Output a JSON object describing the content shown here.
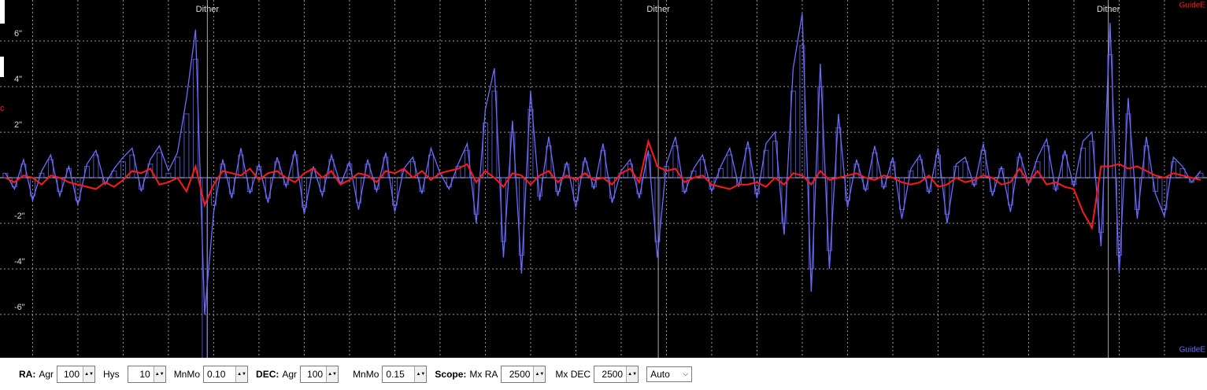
{
  "chart_data": {
    "type": "line",
    "x": [
      -3,
      -2,
      -1,
      0,
      1,
      2,
      3,
      4,
      5,
      6,
      7,
      8,
      9,
      10,
      11,
      12,
      13,
      14,
      15,
      16,
      17,
      18,
      19,
      20,
      21,
      22,
      23,
      24,
      25,
      26,
      27,
      28,
      29,
      30,
      31,
      32,
      33,
      34,
      35,
      36,
      37,
      38,
      39,
      40,
      41,
      42,
      43,
      44,
      45,
      46,
      47,
      48,
      49,
      50,
      51,
      52,
      53,
      54,
      55,
      56,
      57,
      58,
      59,
      60,
      61,
      62,
      63,
      64,
      65,
      66,
      67,
      68,
      69,
      70,
      71,
      72,
      73,
      74,
      75,
      76,
      77,
      78,
      79,
      80,
      81,
      82,
      83,
      84,
      85,
      86,
      87,
      88,
      89,
      90,
      91,
      92,
      93,
      94,
      95,
      96,
      97,
      98,
      99,
      100,
      101,
      102,
      103,
      104,
      105,
      106,
      107,
      108,
      109,
      110,
      111,
      112,
      113,
      114,
      115,
      116,
      117,
      118,
      119,
      120,
      121,
      122,
      123,
      124,
      125,
      126,
      127,
      128,
      129
    ],
    "series": [
      {
        "name": "GuideE",
        "color": "#6b6bff",
        "legend": "bottom-right",
        "values": [
          0.2,
          -0.5,
          0.8,
          -1.0,
          0.3,
          1.0,
          -0.8,
          0.5,
          -1.2,
          0.6,
          1.2,
          -0.3,
          0.4,
          0.9,
          1.3,
          -0.6,
          0.8,
          1.4,
          0.3,
          1.1,
          3.5,
          6.5,
          -6.0,
          -1.5,
          0.8,
          -0.9,
          1.3,
          -0.7,
          0.6,
          -1.1,
          0.9,
          -0.4,
          1.2,
          -1.6,
          0.5,
          -0.8,
          1.0,
          -0.3,
          0.7,
          -1.4,
          0.8,
          -0.6,
          1.1,
          -1.5,
          0.4,
          0.9,
          -0.7,
          1.3,
          0.2,
          -0.5,
          0.6,
          1.5,
          -2.0,
          3.0,
          4.8,
          -3.5,
          2.5,
          -4.2,
          3.8,
          -1.0,
          1.8,
          -0.8,
          0.7,
          -1.3,
          0.9,
          -0.5,
          1.5,
          -1.1,
          0.3,
          0.8,
          -0.9,
          1.2,
          -3.5,
          0.6,
          1.8,
          -0.7,
          0.4,
          1.0,
          -0.6,
          0.5,
          1.3,
          -0.4,
          1.6,
          -0.9,
          1.5,
          2.0,
          -2.5,
          4.8,
          7.2,
          -5.0,
          5.0,
          -4.0,
          2.8,
          -1.3,
          0.8,
          -0.6,
          1.4,
          -0.5,
          0.9,
          -1.8,
          0.4,
          1.0,
          -0.7,
          1.3,
          -2.0,
          0.6,
          0.9,
          -0.4,
          1.5,
          -0.8,
          0.5,
          -1.5,
          1.1,
          -0.3,
          0.9,
          1.7,
          -0.6,
          1.2,
          -0.4,
          1.6,
          2.0,
          -3.0,
          6.8,
          -4.2,
          3.5,
          -1.8,
          1.8,
          -0.7,
          -1.7,
          0.9,
          0.5,
          -0.2,
          0.3
        ],
        "bars": [
          0.2,
          -0.4,
          0.6,
          -0.8,
          0.2,
          0.8,
          -0.6,
          0.4,
          -1.0,
          0.5,
          1.0,
          -0.2,
          0.3,
          0.7,
          1.0,
          -0.5,
          0.6,
          1.1,
          0.2,
          0.9,
          2.8,
          5.2,
          -8.0,
          -1.2,
          0.6,
          -0.7,
          1.0,
          -0.6,
          0.5,
          -0.9,
          0.7,
          -0.3,
          1.0,
          -1.3,
          0.4,
          -0.6,
          0.8,
          -0.2,
          0.6,
          -1.1,
          0.6,
          -0.5,
          0.9,
          -1.2,
          0.3,
          0.7,
          -0.6,
          1.0,
          0.2,
          -0.4,
          0.5,
          1.2,
          -1.6,
          2.4,
          3.8,
          -2.8,
          2.0,
          -3.4,
          3.0,
          -0.8,
          1.4,
          -0.6,
          0.6,
          -1.0,
          0.7,
          -0.4,
          1.2,
          -0.9,
          0.2,
          0.6,
          -0.7,
          1.0,
          -2.8,
          0.5,
          1.4,
          -0.6,
          0.3,
          0.8,
          -0.5,
          0.4,
          1.0,
          -0.3,
          1.3,
          -0.7,
          1.2,
          1.6,
          -2.0,
          3.8,
          5.8,
          -4.0,
          4.0,
          -3.2,
          2.2,
          -1.0,
          0.6,
          -0.5,
          1.1,
          -0.4,
          0.7,
          -1.4,
          0.3,
          0.8,
          -0.6,
          1.0,
          -1.6,
          0.5,
          0.7,
          -0.3,
          1.2,
          -0.6,
          0.4,
          -1.2,
          0.9,
          -0.2,
          0.7,
          1.4,
          -0.5,
          1.0,
          -0.3,
          1.3,
          1.6,
          -2.4,
          5.4,
          -3.4,
          2.8,
          -1.4,
          1.4,
          -0.6,
          -1.4,
          0.7,
          0.4,
          -0.2,
          0.2
        ]
      },
      {
        "name": "GuideE",
        "color": "#ff1a1a",
        "legend": "top-right",
        "values": [
          0.0,
          -0.2,
          0.1,
          0.0,
          -0.3,
          0.1,
          0.0,
          -0.2,
          -0.3,
          -0.4,
          -0.5,
          -0.2,
          -0.4,
          -0.1,
          0.3,
          0.2,
          0.4,
          -0.3,
          -0.2,
          0.0,
          -0.6,
          0.5,
          -1.2,
          -0.3,
          0.3,
          0.2,
          0.1,
          0.4,
          -0.1,
          0.2,
          0.3,
          0.0,
          -0.2,
          0.2,
          0.4,
          0.0,
          0.3,
          -0.3,
          -0.1,
          0.2,
          0.1,
          -0.2,
          0.3,
          0.2,
          0.4,
          0.0,
          0.3,
          -0.1,
          0.2,
          0.3,
          0.4,
          0.6,
          -0.2,
          0.3,
          0.0,
          -0.4,
          0.2,
          0.1,
          -0.3,
          0.1,
          0.3,
          -0.2,
          0.1,
          -0.1,
          0.2,
          -0.1,
          0.0,
          -0.3,
          0.2,
          0.4,
          -0.2,
          1.6,
          0.5,
          0.3,
          0.4,
          -0.2,
          0.0,
          0.1,
          -0.3,
          -0.4,
          -0.5,
          -0.3,
          -0.3,
          -0.2,
          -0.4,
          0.0,
          -0.3,
          0.2,
          0.1,
          -0.3,
          0.3,
          -0.1,
          0.0,
          0.1,
          0.2,
          0.0,
          -0.1,
          0.1,
          0.0,
          -0.2,
          -0.3,
          -0.2,
          0.1,
          -0.4,
          -0.3,
          0.0,
          -0.2,
          -0.1,
          0.1,
          0.0,
          -0.3,
          -0.2,
          0.4,
          -0.2,
          0.3,
          -0.3,
          -0.2,
          -0.4,
          -0.5,
          -1.5,
          -2.2,
          0.5,
          0.5,
          0.6,
          0.4,
          0.5,
          0.3,
          0.1,
          0.0,
          0.2,
          0.1,
          0.0,
          -0.1
        ]
      }
    ],
    "xlim": [
      -3.6,
      129.7
    ],
    "xticks": [
      0,
      5,
      10,
      15,
      20,
      25,
      30,
      35,
      40,
      45,
      50,
      55,
      60,
      65,
      70,
      75,
      80,
      85,
      90,
      95,
      100,
      105,
      110,
      115,
      120,
      125
    ],
    "ylim": [
      -7.9,
      7.8
    ],
    "yticks": [
      {
        "value": 6,
        "label": "6\""
      },
      {
        "value": 4,
        "label": "4\""
      },
      {
        "value": 2,
        "label": "2\""
      },
      {
        "value": -2,
        "label": "-2\""
      },
      {
        "value": -4,
        "label": "-4\""
      },
      {
        "value": -6,
        "label": "-6\""
      }
    ],
    "zero_line": true,
    "grid": true,
    "annotations": [
      {
        "x": 19.3,
        "label": "Dither"
      },
      {
        "x": 69.1,
        "label": "Dither"
      },
      {
        "x": 118.8,
        "label": "Dither"
      }
    ],
    "left_label": "c"
  },
  "controls": {
    "ra": {
      "title": "RA:",
      "agr_label": "Agr",
      "agr": 100,
      "hys_label": "Hys",
      "hys": 10,
      "mnmo_label": "MnMo",
      "mnmo": "0.10"
    },
    "dec": {
      "title": "DEC:",
      "agr_label": "Agr",
      "agr": 100,
      "mnmo_label": "MnMo",
      "mnmo": "0.15"
    },
    "scope": {
      "title": "Scope:",
      "mxra_label": "Mx RA",
      "mxra": 2500,
      "mxdec_label": "Mx DEC",
      "mxdec": 2500,
      "mode": "Auto"
    }
  }
}
